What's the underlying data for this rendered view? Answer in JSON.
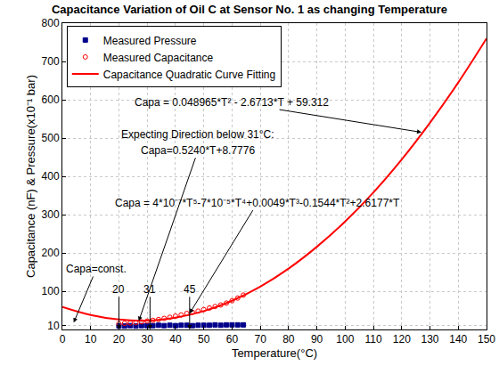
{
  "chart_data": {
    "type": "scatter",
    "title": "Capacitance Variation of Oil C at Sensor No. 1 as changing Temperature",
    "x_label": "Temperature(°C)",
    "y_label": "Capacitance (nF) & Pressure(x10⁻¹ bar)",
    "xlim": [
      0,
      150
    ],
    "xticks": [
      0,
      10,
      20,
      30,
      40,
      50,
      60,
      70,
      80,
      90,
      100,
      110,
      120,
      130,
      140,
      150
    ],
    "ylim": [
      0,
      800
    ],
    "yticks": [
      10,
      100,
      200,
      300,
      400,
      500,
      600,
      700,
      800
    ],
    "grid": true,
    "legend": "upper left",
    "series": [
      {
        "name": "Measured Pressure",
        "type": "scatter",
        "color": "#00008b",
        "marker": "square",
        "x": [
          20,
          22,
          24,
          26,
          28,
          30,
          32,
          34,
          36,
          38,
          40,
          42,
          44,
          46,
          48,
          50,
          52,
          54,
          56,
          58,
          60,
          62,
          64
        ],
        "values": [
          9,
          9,
          10,
          9,
          10,
          10,
          10,
          11,
          10,
          11,
          10,
          11,
          11,
          10,
          11,
          11,
          11,
          12,
          11,
          12,
          12,
          12,
          12
        ]
      },
      {
        "name": "Measured Capacitance",
        "type": "scatter",
        "color": "#ff0000",
        "marker": "circle-open",
        "x": [
          20,
          22,
          24,
          26,
          28,
          30,
          32,
          34,
          36,
          38,
          40,
          42,
          44,
          46,
          48,
          50,
          52,
          54,
          56,
          58,
          60,
          62,
          64
        ],
        "values": [
          15,
          16,
          17,
          18,
          20,
          22,
          24,
          26,
          29,
          32,
          35,
          38,
          42,
          45,
          48,
          52,
          56,
          60,
          64,
          69,
          75,
          82,
          90
        ]
      },
      {
        "name": "Capacitance Quadratic Curve Fitting",
        "type": "line",
        "color": "#ff0000",
        "line_style": "solid",
        "x": [
          0,
          10,
          20,
          30,
          40,
          50,
          60,
          70,
          80,
          90,
          100,
          110,
          120,
          130,
          140,
          150
        ],
        "values": [
          59,
          38,
          26,
          23,
          31,
          48,
          75,
          112,
          159,
          216,
          282,
          358,
          444,
          540,
          645,
          760
        ]
      }
    ],
    "annotations": [
      {
        "text": "Capa = 0.048965*T² - 2.6713*T + 59.312",
        "x": 60,
        "y": 594,
        "arrow_to": [
          127,
          515
        ]
      },
      {
        "text": "Expecting Direction below 31°C:",
        "x": 48,
        "y": 510
      },
      {
        "text": "Capa=0.5240*T+8.7776",
        "x": 48,
        "y": 468,
        "arrow_to": [
          27,
          22
        ]
      },
      {
        "text": "Capa = 4*10⁻⁷*T⁵-7*10⁻⁵*T⁴+0.0049*T³-0.1544*T²+2.6177*T",
        "x": 69,
        "y": 331,
        "arrow_to": [
          45,
          42
        ]
      },
      {
        "text": "Capa=const.",
        "x": 12,
        "y": 158,
        "arrow_to": [
          4,
          18
        ]
      },
      {
        "text": "20",
        "x": 20,
        "y": 105,
        "arrow_to": [
          20,
          0
        ]
      },
      {
        "text": "31",
        "x": 31,
        "y": 105,
        "arrow_to": [
          31,
          0
        ]
      },
      {
        "text": "45",
        "x": 45,
        "y": 105,
        "arrow_to": [
          45,
          0
        ]
      }
    ]
  }
}
